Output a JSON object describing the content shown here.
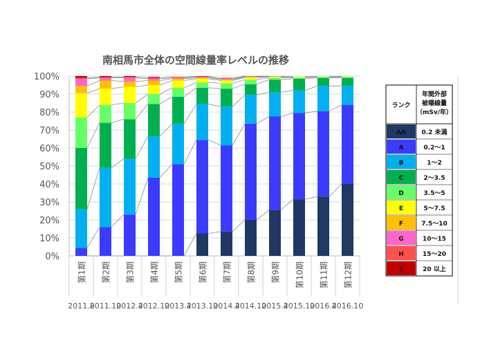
{
  "chart_data": {
    "type": "bar",
    "stacked": true,
    "normalized": true,
    "title": "南相馬市全体の空間線量率レベルの推移",
    "categories": [
      "第1期",
      "第2期",
      "第3期",
      "第4期",
      "第5期",
      "第6期",
      "第7期",
      "第8期",
      "第9期",
      "第10期",
      "第11期",
      "第12期"
    ],
    "dates": [
      "2011.8",
      "2011.10",
      "2012.4",
      "2012.10",
      "2013.4",
      "2013.10",
      "2014.4",
      "2014.10",
      "2015.4",
      "2015.10",
      "2016.4",
      "2016.10"
    ],
    "ylim": [
      0,
      100
    ],
    "yticks": [
      "0%",
      "10%",
      "20%",
      "30%",
      "40%",
      "50%",
      "60%",
      "70%",
      "80%",
      "90%",
      "100%"
    ],
    "grid": true,
    "series": [
      {
        "name": "AA",
        "range": "0.2 未満",
        "color": "#1f3864",
        "values": [
          0,
          0,
          0,
          0,
          0,
          12.5,
          13.5,
          20,
          25.5,
          31.5,
          33,
          40
        ]
      },
      {
        "name": "A",
        "range": "0.2〜1",
        "color": "#3b3bff",
        "values": [
          4.5,
          16,
          23,
          43.5,
          51,
          52,
          48,
          53.5,
          52,
          48,
          47.5,
          44
        ]
      },
      {
        "name": "B",
        "range": "1〜2",
        "color": "#00b0f0",
        "values": [
          21.5,
          33,
          31,
          23,
          22.5,
          20,
          21.5,
          16,
          13.5,
          12.5,
          14,
          10.5
        ]
      },
      {
        "name": "C",
        "range": "2〜3.5",
        "color": "#00b050",
        "values": [
          34,
          25,
          22,
          18,
          15,
          9,
          10,
          6,
          7,
          6.5,
          4.5,
          4.5
        ]
      },
      {
        "name": "D",
        "range": "3.5〜5",
        "color": "#66ff66",
        "values": [
          17,
          10,
          9,
          5.5,
          5,
          3,
          3,
          2.5,
          1,
          0.7,
          0.5,
          0.5
        ]
      },
      {
        "name": "E",
        "range": "5〜7.5",
        "color": "#ffff00",
        "values": [
          13.5,
          9,
          9,
          5,
          4,
          2,
          1.5,
          1.2,
          0.5,
          0.3,
          0.2,
          0.2
        ]
      },
      {
        "name": "F",
        "range": "7.5〜10",
        "color": "#ffc000",
        "values": [
          4,
          4.5,
          3,
          2.5,
          1,
          0.5,
          0.5,
          0.3,
          0.2,
          0,
          0,
          0
        ]
      },
      {
        "name": "G",
        "range": "10〜15",
        "color": "#ff66cc",
        "values": [
          4,
          1.5,
          2,
          1,
          0.5,
          0.5,
          0.5,
          0.3,
          0.1,
          0,
          0,
          0
        ]
      },
      {
        "name": "H",
        "range": "15〜20",
        "color": "#ff5050",
        "values": [
          0.5,
          0.3,
          0.5,
          0.5,
          0.4,
          0.3,
          0.3,
          0.2,
          0.1,
          0,
          0,
          0
        ]
      },
      {
        "name": "I",
        "range": "20 以上",
        "color": "#c00000",
        "values": [
          1,
          0.7,
          0.5,
          0.5,
          0.1,
          0.2,
          0.2,
          0,
          0,
          0,
          0,
          0
        ]
      }
    ],
    "legend": {
      "placement": "right",
      "header_rank": "ランク",
      "header_dose": [
        "年間外部",
        "被曝線量",
        "（mSv/年）"
      ]
    }
  }
}
